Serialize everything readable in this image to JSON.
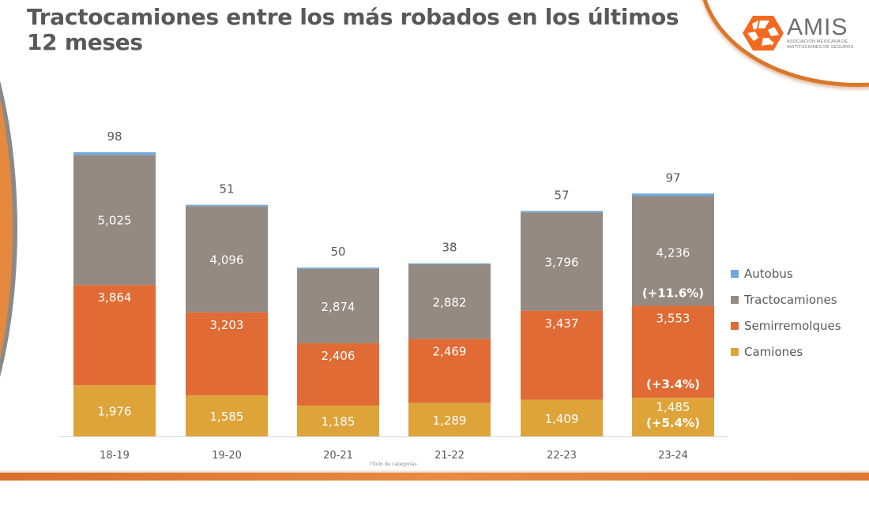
{
  "page": {
    "title": "Tractocamiones entre los más robados en los últimos 12 meses",
    "logo": {
      "name": "AMIS",
      "subtitle_line1": "ASOCIACIÓN MEXICANA DE",
      "subtitle_line2": "INSTITUCIONES DE SEGUROS",
      "icon": "amis-hexagon-icon"
    }
  },
  "colors": {
    "autobus": "#6fa8dc",
    "tractocamiones": "#948a81",
    "semirremolques": "#e06b35",
    "camiones": "#dea43a",
    "accent_orange": "#e5893f",
    "title_gray": "#595959"
  },
  "chart_data": {
    "type": "bar",
    "stacked": true,
    "title": "Tractocamiones entre los más robados en los últimos 12 meses",
    "xlabel": "Título de categorías",
    "ylabel": "",
    "categories": [
      "18-19",
      "19-20",
      "20-21",
      "21-22",
      "22-23",
      "23-24"
    ],
    "series": [
      {
        "name": "Camiones",
        "color": "#dea43a",
        "values": [
          1976,
          1585,
          1185,
          1289,
          1409,
          1485
        ],
        "labels": [
          "1,976",
          "1,585",
          "1,185",
          "1,289",
          "1,409",
          "1,485"
        ],
        "annotations": [
          "",
          "",
          "",
          "",
          "",
          "(+5.4%)"
        ]
      },
      {
        "name": "Semirremolques",
        "color": "#e06b35",
        "values": [
          3864,
          3203,
          2406,
          2469,
          3437,
          3553
        ],
        "labels": [
          "3,864",
          "3,203",
          "2,406",
          "2,469",
          "3,437",
          "3,553"
        ],
        "annotations": [
          "",
          "",
          "",
          "",
          "",
          "(+3.4%)"
        ]
      },
      {
        "name": "Tractocamiones",
        "color": "#948a81",
        "values": [
          5025,
          4096,
          2874,
          2882,
          3796,
          4236
        ],
        "labels": [
          "5,025",
          "4,096",
          "2,874",
          "2,882",
          "3,796",
          "4,236"
        ],
        "annotations": [
          "",
          "",
          "",
          "",
          "",
          "(+11.6%)"
        ]
      },
      {
        "name": "Autobus",
        "color": "#6fa8dc",
        "values": [
          98,
          51,
          50,
          38,
          57,
          97
        ],
        "labels": [
          "98",
          "51",
          "50",
          "38",
          "57",
          "97"
        ],
        "annotations": [
          "",
          "",
          "",
          "",
          "",
          ""
        ]
      }
    ],
    "legend": {
      "position": "right",
      "entries": [
        "Autobus",
        "Tractocamiones",
        "Semirremolques",
        "Camiones"
      ]
    },
    "ylim": [
      0,
      11000
    ],
    "grid": false
  }
}
